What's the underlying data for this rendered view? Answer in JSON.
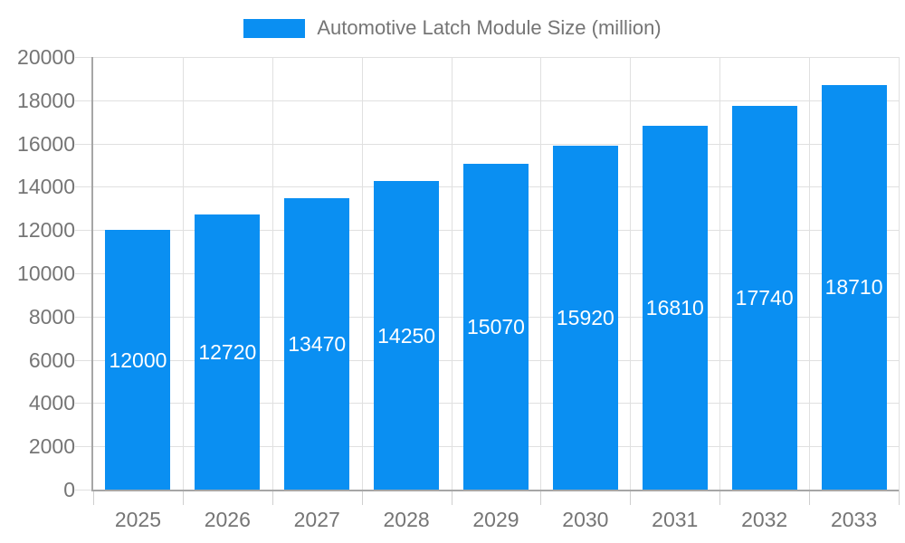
{
  "chart_data": {
    "type": "bar",
    "title": "Automotive Latch Module Size (million)",
    "categories": [
      "2025",
      "2026",
      "2027",
      "2028",
      "2029",
      "2030",
      "2031",
      "2032",
      "2033"
    ],
    "values": [
      12000,
      12720,
      13470,
      14250,
      15070,
      15920,
      16810,
      17740,
      18710
    ],
    "bar_labels": [
      "12000",
      "12720",
      "13470",
      "14250",
      "15070",
      "15920",
      "16810",
      "17740",
      "18710"
    ],
    "xlabel": "",
    "ylabel": "",
    "ylim": [
      0,
      20000
    ],
    "ytick_step": 2000,
    "y_tick_labels": [
      "0",
      "2000",
      "4000",
      "6000",
      "8000",
      "10000",
      "12000",
      "14000",
      "16000",
      "18000",
      "20000"
    ],
    "grid": true,
    "legend_position": "top-center",
    "colors": {
      "bar": "#0a8ff2",
      "bar_label": "#ffffff",
      "axis_label": "#757575",
      "legend_label": "#757575",
      "axis_line": "#a6a6a6",
      "grid_line": "#e0e0e0",
      "tick_mark": "#cfcfcf",
      "background": "#ffffff"
    }
  }
}
